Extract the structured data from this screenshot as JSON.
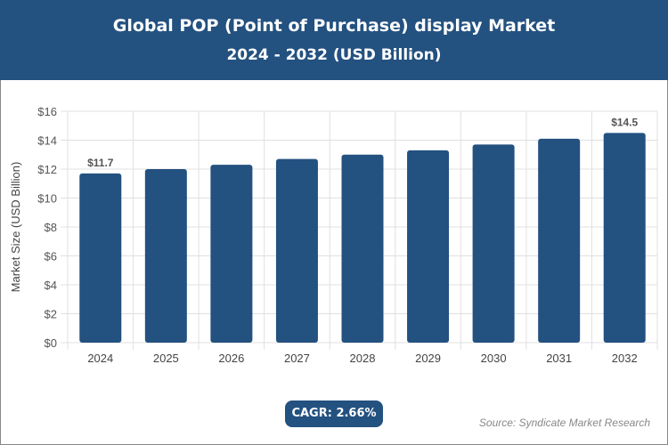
{
  "header": {
    "title": "Global POP (Point of Purchase) display Market",
    "subtitle": "2024 - 2032 (USD Billion)"
  },
  "chart_data": {
    "type": "bar",
    "categories": [
      "2024",
      "2025",
      "2026",
      "2027",
      "2028",
      "2029",
      "2030",
      "2031",
      "2032"
    ],
    "values": [
      11.7,
      12.0,
      12.3,
      12.7,
      13.0,
      13.3,
      13.7,
      14.1,
      14.5
    ],
    "data_labels": {
      "0": "$11.7",
      "8": "$14.5"
    },
    "ylabel": "Market Size (USD Billion)",
    "ylim": [
      0,
      16
    ],
    "yticks": [
      "$0",
      "$2",
      "$4",
      "$6",
      "$8",
      "$10",
      "$12",
      "$14",
      "$16"
    ],
    "grid": true,
    "bar_color": "#235180"
  },
  "cagr": "CAGR: 2.66%",
  "source": "Source: Syndicate Market Research"
}
